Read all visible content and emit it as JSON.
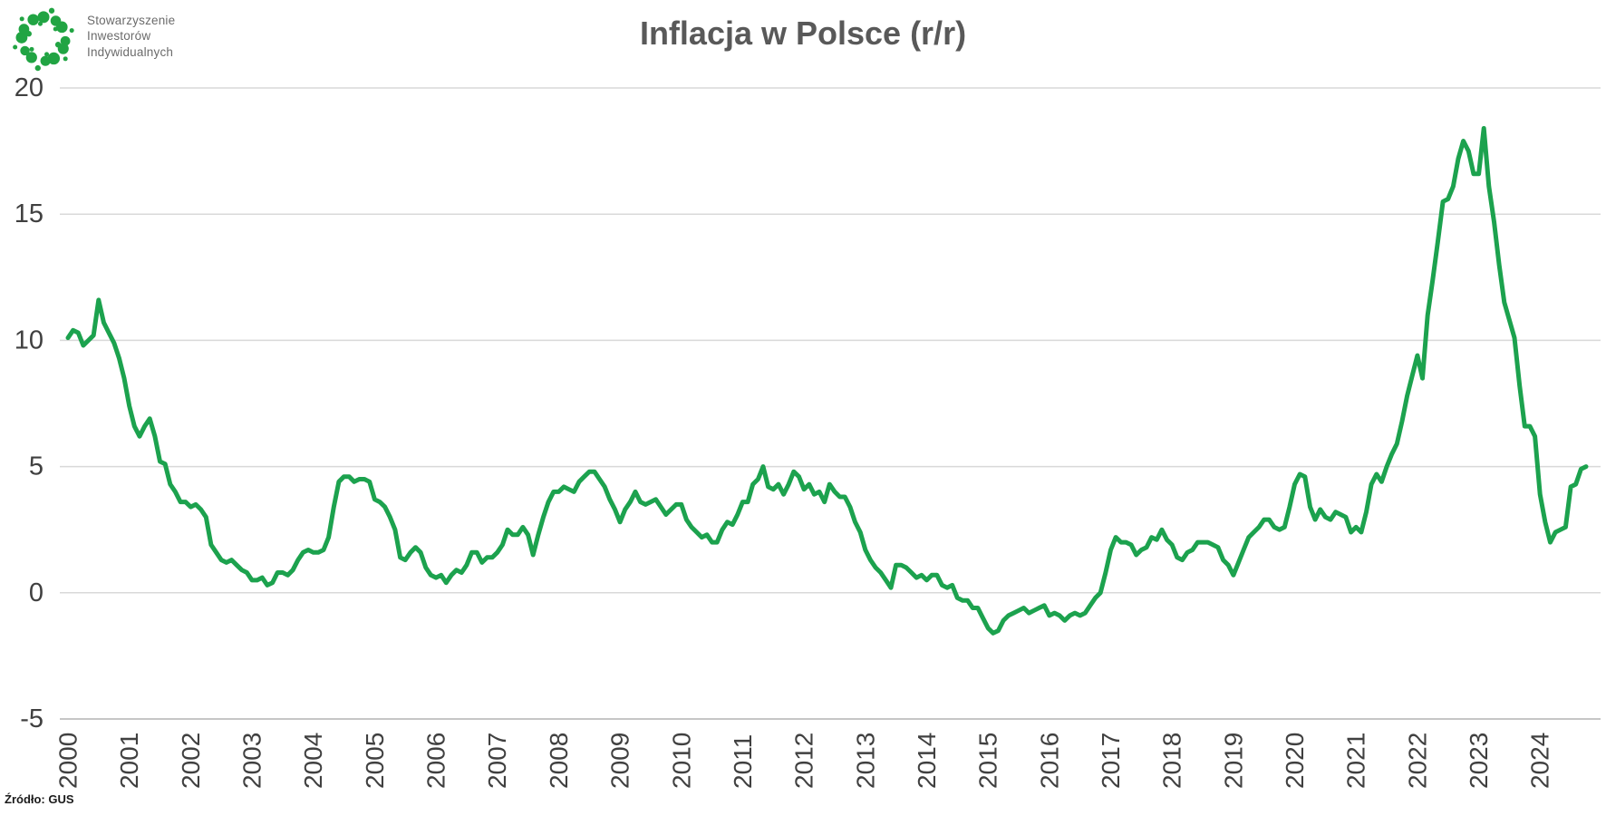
{
  "logo": {
    "org_lines": [
      "Stowarzyszenie",
      "Inwestorów",
      "Indywidualnych"
    ]
  },
  "title": "Inflacja w Polsce (r/r)",
  "source_label": "Źródło: GUS",
  "colors": {
    "line_green": "#1CA24E",
    "logo_green": "#21A443",
    "grid": "#D9D9D9",
    "axis_line": "#C6C6C6",
    "tick_text": "#404040",
    "title_text": "#595959",
    "source_text": "#1a1a1a",
    "logo_text": "#6b6b6b"
  },
  "chart_data": {
    "type": "line",
    "title": "Inflacja w Polsce (r/r)",
    "source": "GUS",
    "x_unit": "month",
    "x_range": "2000-01 to 2024-10",
    "x_tick_labels": [
      "2000",
      "2001",
      "2002",
      "2003",
      "2004",
      "2005",
      "2006",
      "2007",
      "2008",
      "2009",
      "2010",
      "2011",
      "2012",
      "2013",
      "2014",
      "2015",
      "2016",
      "2017",
      "2018",
      "2019",
      "2020",
      "2021",
      "2022",
      "2023",
      "2024"
    ],
    "ylim": [
      -5,
      20
    ],
    "y_ticks": [
      20,
      15,
      10,
      5,
      0,
      -5
    ],
    "grid": "horizontal",
    "legend": "none",
    "series": [
      {
        "name": "Inflacja w Polsce r/r (%)",
        "values_by_year": {
          "2000": [
            10.1,
            10.4,
            10.3,
            9.8,
            10.0,
            10.2,
            11.6,
            10.7,
            10.3,
            9.9,
            9.3,
            8.5
          ],
          "2001": [
            7.4,
            6.6,
            6.2,
            6.6,
            6.9,
            6.2,
            5.2,
            5.1,
            4.3,
            4.0,
            3.6,
            3.6
          ],
          "2002": [
            3.4,
            3.5,
            3.3,
            3.0,
            1.9,
            1.6,
            1.3,
            1.2,
            1.3,
            1.1,
            0.9,
            0.8
          ],
          "2003": [
            0.5,
            0.5,
            0.6,
            0.3,
            0.4,
            0.8,
            0.8,
            0.7,
            0.9,
            1.3,
            1.6,
            1.7
          ],
          "2004": [
            1.6,
            1.6,
            1.7,
            2.2,
            3.4,
            4.4,
            4.6,
            4.6,
            4.4,
            4.5,
            4.5,
            4.4
          ],
          "2005": [
            3.7,
            3.6,
            3.4,
            3.0,
            2.5,
            1.4,
            1.3,
            1.6,
            1.8,
            1.6,
            1.0,
            0.7
          ],
          "2006": [
            0.6,
            0.7,
            0.4,
            0.7,
            0.9,
            0.8,
            1.1,
            1.6,
            1.6,
            1.2,
            1.4,
            1.4
          ],
          "2007": [
            1.6,
            1.9,
            2.5,
            2.3,
            2.3,
            2.6,
            2.3,
            1.5,
            2.3,
            3.0,
            3.6,
            4.0
          ],
          "2008": [
            4.0,
            4.2,
            4.1,
            4.0,
            4.4,
            4.6,
            4.8,
            4.8,
            4.5,
            4.2,
            3.7,
            3.3
          ],
          "2009": [
            2.8,
            3.3,
            3.6,
            4.0,
            3.6,
            3.5,
            3.6,
            3.7,
            3.4,
            3.1,
            3.3,
            3.5
          ],
          "2010": [
            3.5,
            2.9,
            2.6,
            2.4,
            2.2,
            2.3,
            2.0,
            2.0,
            2.5,
            2.8,
            2.7,
            3.1
          ],
          "2011": [
            3.6,
            3.6,
            4.3,
            4.5,
            5.0,
            4.2,
            4.1,
            4.3,
            3.9,
            4.3,
            4.8,
            4.6
          ],
          "2012": [
            4.1,
            4.3,
            3.9,
            4.0,
            3.6,
            4.3,
            4.0,
            3.8,
            3.8,
            3.4,
            2.8,
            2.4
          ],
          "2013": [
            1.7,
            1.3,
            1.0,
            0.8,
            0.5,
            0.2,
            1.1,
            1.1,
            1.0,
            0.8,
            0.6,
            0.7
          ],
          "2014": [
            0.5,
            0.7,
            0.7,
            0.3,
            0.2,
            0.3,
            -0.2,
            -0.3,
            -0.3,
            -0.6,
            -0.6,
            -1.0
          ],
          "2015": [
            -1.4,
            -1.6,
            -1.5,
            -1.1,
            -0.9,
            -0.8,
            -0.7,
            -0.6,
            -0.8,
            -0.7,
            -0.6,
            -0.5
          ],
          "2016": [
            -0.9,
            -0.8,
            -0.9,
            -1.1,
            -0.9,
            -0.8,
            -0.9,
            -0.8,
            -0.5,
            -0.2,
            0.0,
            0.8
          ],
          "2017": [
            1.7,
            2.2,
            2.0,
            2.0,
            1.9,
            1.5,
            1.7,
            1.8,
            2.2,
            2.1,
            2.5,
            2.1
          ],
          "2018": [
            1.9,
            1.4,
            1.3,
            1.6,
            1.7,
            2.0,
            2.0,
            2.0,
            1.9,
            1.8,
            1.3,
            1.1
          ],
          "2019": [
            0.7,
            1.2,
            1.7,
            2.2,
            2.4,
            2.6,
            2.9,
            2.9,
            2.6,
            2.5,
            2.6,
            3.4
          ],
          "2020": [
            4.3,
            4.7,
            4.6,
            3.4,
            2.9,
            3.3,
            3.0,
            2.9,
            3.2,
            3.1,
            3.0,
            2.4
          ],
          "2021": [
            2.6,
            2.4,
            3.2,
            4.3,
            4.7,
            4.4,
            5.0,
            5.5,
            5.9,
            6.8,
            7.8,
            8.6
          ],
          "2022": [
            9.4,
            8.5,
            11.0,
            12.4,
            13.9,
            15.5,
            15.6,
            16.1,
            17.2,
            17.9,
            17.5,
            16.6
          ],
          "2023": [
            16.6,
            18.4,
            16.1,
            14.7,
            13.0,
            11.5,
            10.8,
            10.1,
            8.2,
            6.6,
            6.6,
            6.2
          ],
          "2024": [
            3.9,
            2.8,
            2.0,
            2.4,
            2.5,
            2.6,
            4.2,
            4.3,
            4.9,
            5.0
          ]
        }
      }
    ]
  }
}
